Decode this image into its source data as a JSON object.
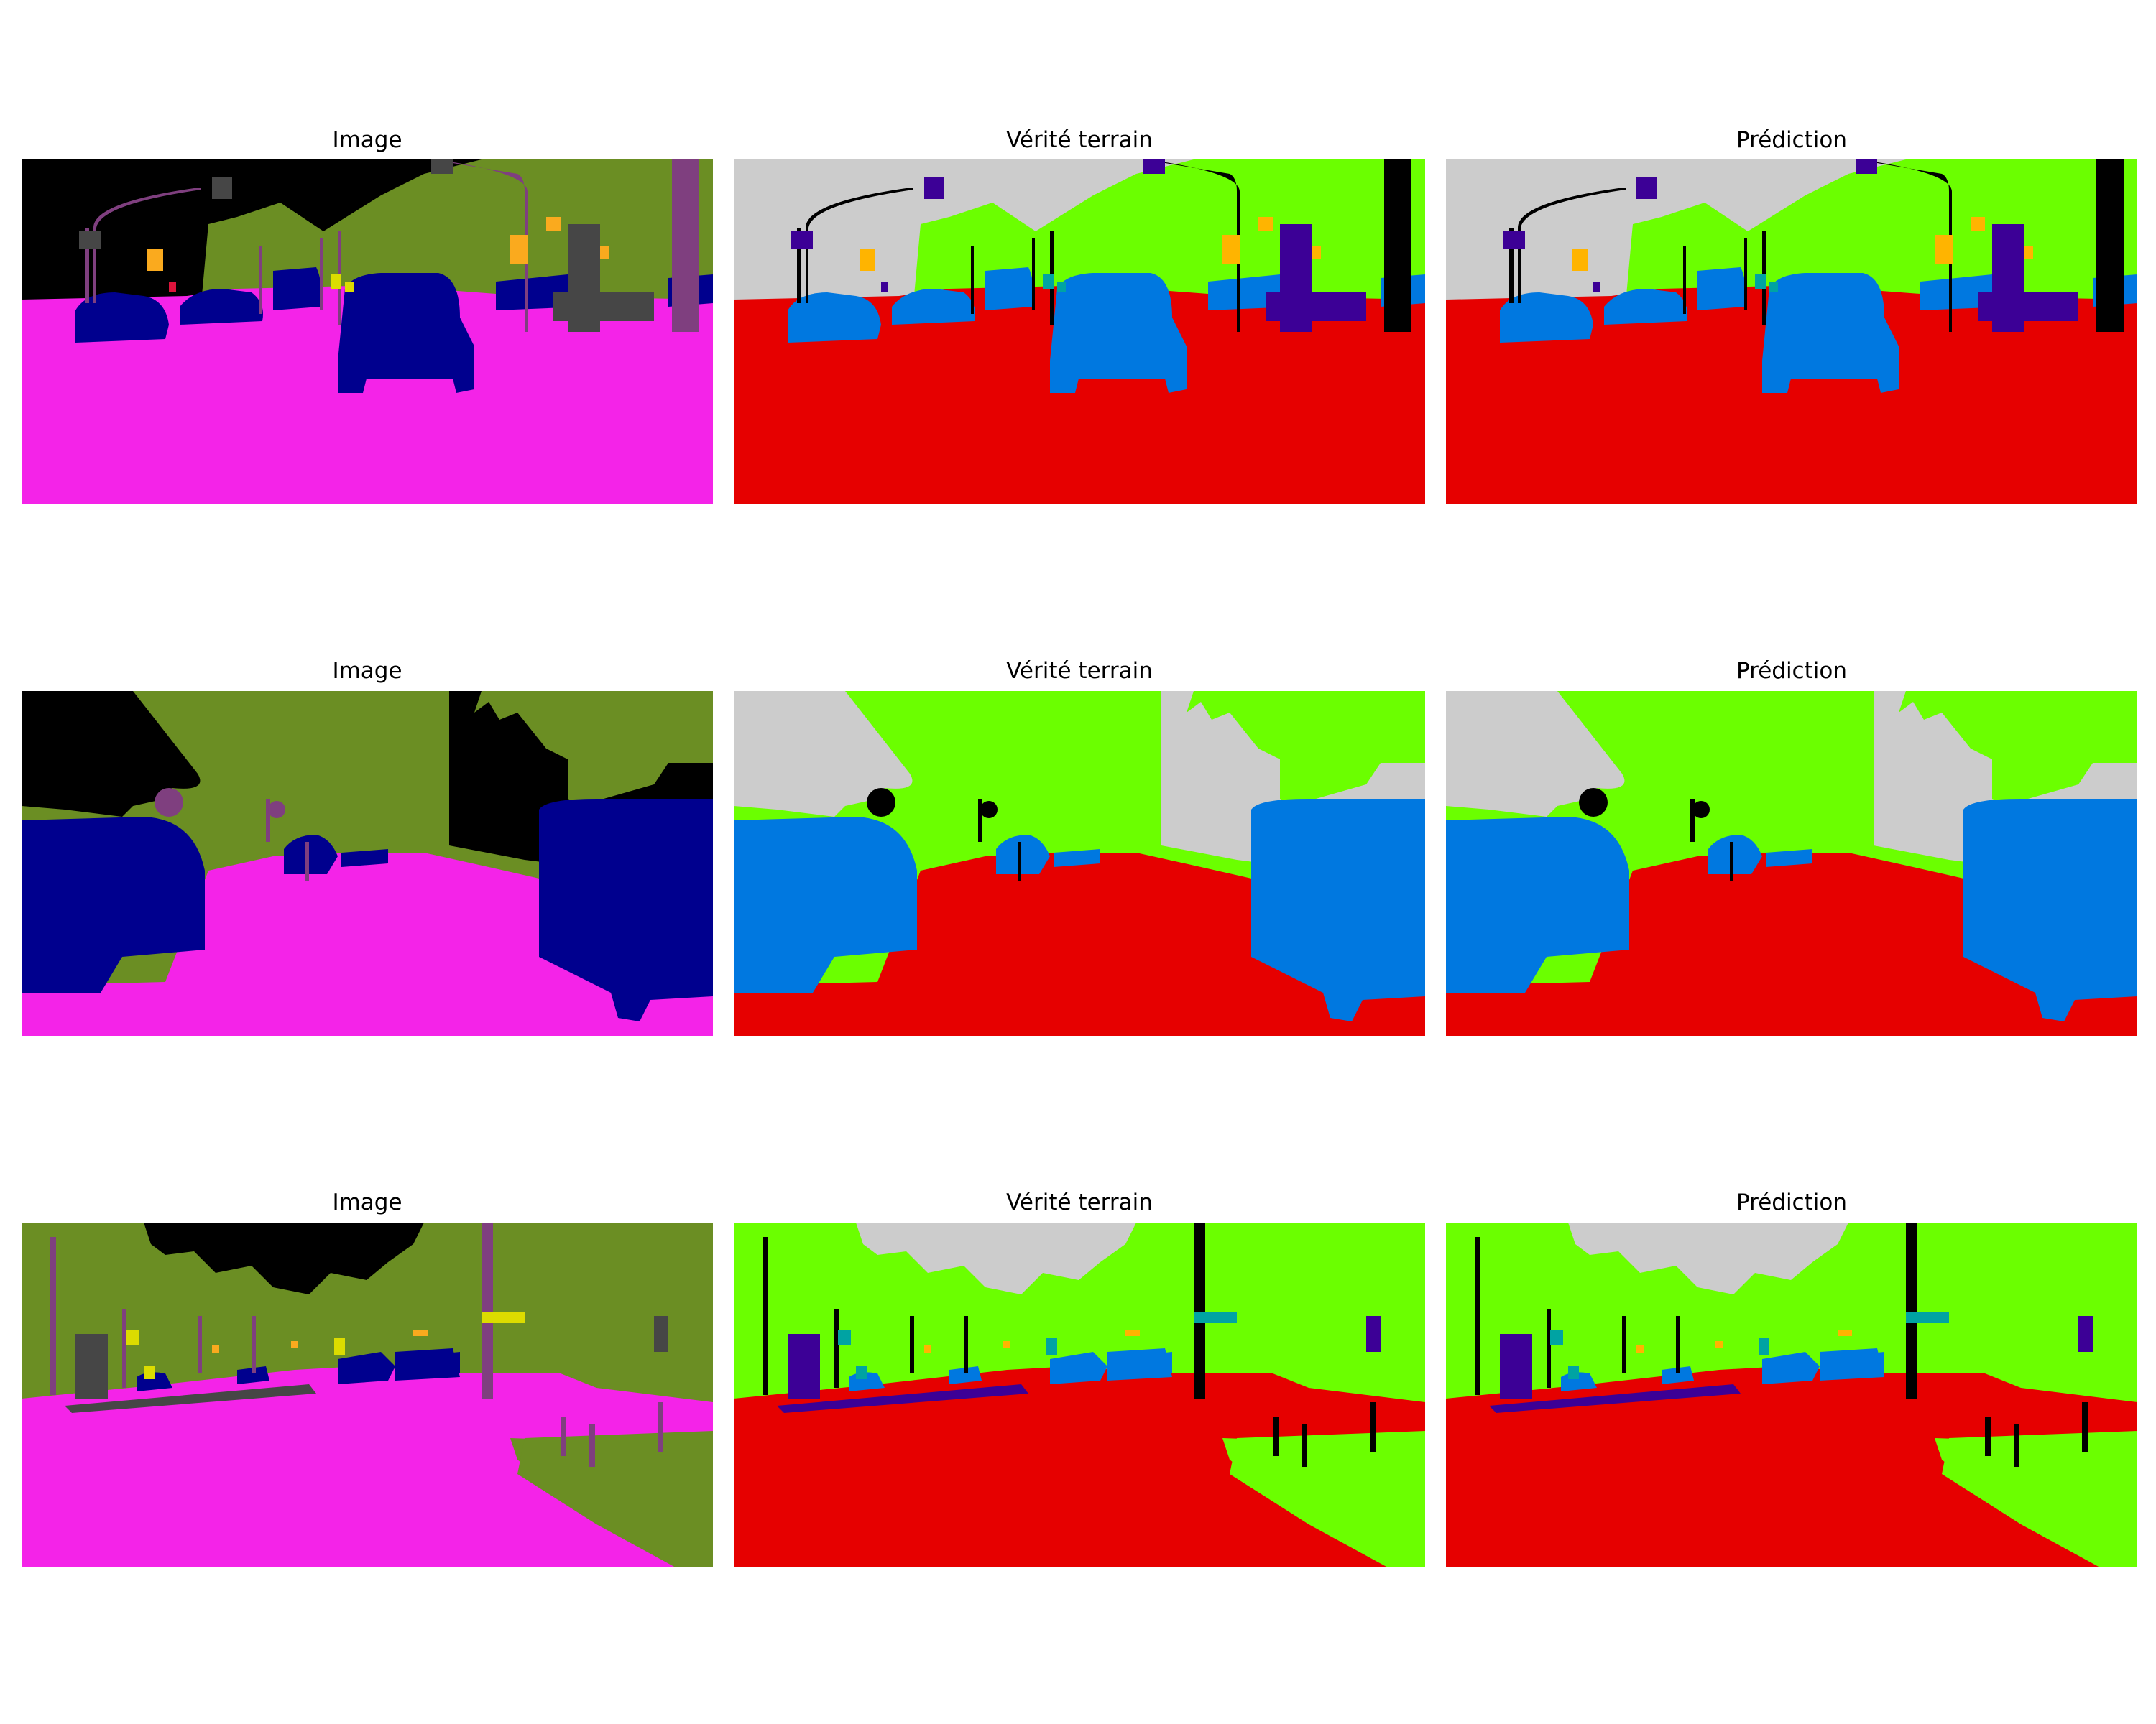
{
  "rows": [
    {
      "titles": [
        "Image",
        "Vérité terrain",
        "Prédiction"
      ]
    },
    {
      "titles": [
        "Image",
        "Vérité terrain",
        "Prédiction"
      ]
    },
    {
      "titles": [
        "Image",
        "Vérité terrain",
        "Prédiction"
      ]
    }
  ],
  "palettes": {
    "image": {
      "sky": "#000000",
      "vegetation": "#6b8e23",
      "road": "#f423e8",
      "car": "#00008e",
      "pole": "#7f3f7f",
      "building": "#464646",
      "sign": "#dcdc00",
      "light": "#faaa1e",
      "person": "#dc143c"
    },
    "mask": {
      "sky": "#cccccc",
      "vegetation": "#6bff00",
      "road": "#e60000",
      "car": "#0078e0",
      "pole": "#000000",
      "building": "#3c0096",
      "sign": "#00a3a3",
      "light": "#ffb400",
      "person": "#3c0096"
    }
  }
}
